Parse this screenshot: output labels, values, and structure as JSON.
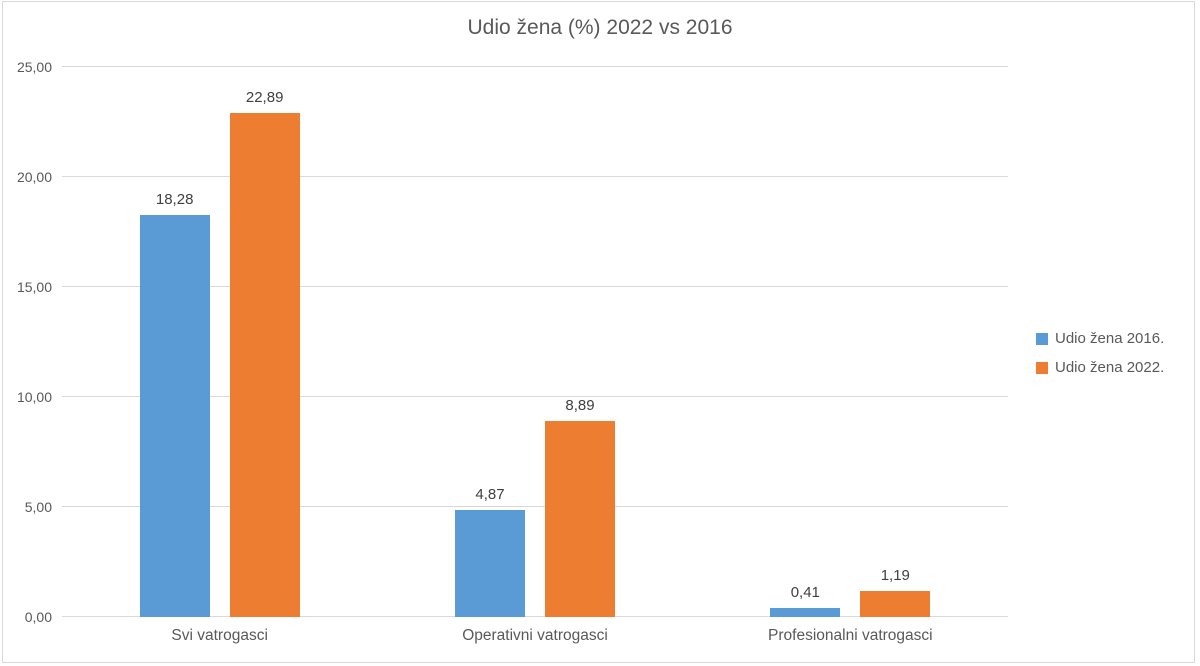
{
  "chart_data": {
    "type": "bar",
    "title": "Udio žena (%) 2022 vs 2016",
    "categories": [
      "Svi vatrogasci",
      "Operativni vatrogasci",
      "Profesionalni vatrogasci"
    ],
    "series": [
      {
        "name": "Udio žena 2016.",
        "color": "#5B9BD5",
        "values": [
          18.28,
          4.87,
          0.41
        ],
        "value_labels": [
          "18,28",
          "4,87",
          "0,41"
        ]
      },
      {
        "name": "Udio žena 2022.",
        "color": "#ED7D31",
        "values": [
          22.89,
          8.89,
          1.19
        ],
        "value_labels": [
          "22,89",
          "8,89",
          "1,19"
        ]
      }
    ],
    "y_axis": {
      "min": 0,
      "max": 25,
      "step": 5,
      "tick_labels": [
        "0,00",
        "5,00",
        "10,00",
        "15,00",
        "20,00",
        "25,00"
      ]
    },
    "grid": true,
    "legend_position": "right",
    "gridline_color": "#D9D9D9",
    "text_color": "#595959"
  }
}
